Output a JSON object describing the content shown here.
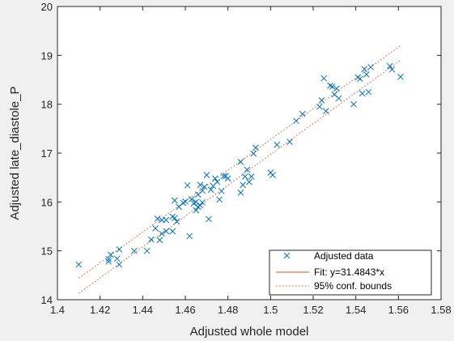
{
  "chart_data": {
    "type": "scatter",
    "title": "",
    "xlabel": "Adjusted whole model",
    "ylabel": "Adjusted late_diastole_P",
    "xlim": [
      1.4,
      1.58
    ],
    "ylim": [
      14,
      20
    ],
    "xticks": [
      "1.4",
      "1.42",
      "1.44",
      "1.46",
      "1.48",
      "1.5",
      "1.52",
      "1.54",
      "1.56",
      "1.58"
    ],
    "yticks": [
      "14",
      "15",
      "16",
      "17",
      "18",
      "19",
      "20"
    ],
    "grid": false,
    "legend_position": "bottom-right",
    "legend": [
      {
        "label": "Adjusted data",
        "marker": "x",
        "color": "#0072bd"
      },
      {
        "label": "Fit: y=31.4843*x",
        "style": "solid",
        "color": "#d95319"
      },
      {
        "label": "95% conf. bounds",
        "style": "dotted",
        "color": "#d95319"
      }
    ],
    "series": [
      {
        "name": "Adjusted data",
        "marker": "x",
        "color": "#0072bd",
        "x": [
          1.41,
          1.424,
          1.424,
          1.425,
          1.428,
          1.429,
          1.429,
          1.436,
          1.442,
          1.444,
          1.446,
          1.447,
          1.448,
          1.449,
          1.449,
          1.451,
          1.451,
          1.454,
          1.454,
          1.455,
          1.455,
          1.456,
          1.457,
          1.459,
          1.46,
          1.461,
          1.462,
          1.463,
          1.464,
          1.465,
          1.465,
          1.466,
          1.466,
          1.467,
          1.467,
          1.468,
          1.468,
          1.469,
          1.47,
          1.471,
          1.472,
          1.473,
          1.474,
          1.475,
          1.476,
          1.477,
          1.478,
          1.479,
          1.48,
          1.486,
          1.486,
          1.487,
          1.488,
          1.489,
          1.49,
          1.491,
          1.492,
          1.493,
          1.5,
          1.501,
          1.503,
          1.509,
          1.512,
          1.515,
          1.523,
          1.524,
          1.525,
          1.526,
          1.528,
          1.529,
          1.53,
          1.531,
          1.532,
          1.539,
          1.541,
          1.542,
          1.543,
          1.544,
          1.545,
          1.546,
          1.547,
          1.556,
          1.557,
          1.561
        ],
        "y": [
          14.72,
          14.78,
          14.83,
          14.92,
          14.84,
          14.72,
          15.03,
          15.0,
          15.0,
          15.23,
          15.46,
          15.66,
          15.22,
          15.63,
          15.35,
          15.63,
          15.4,
          15.4,
          15.7,
          15.67,
          16.03,
          15.6,
          15.9,
          15.98,
          16.01,
          16.34,
          15.3,
          16.06,
          15.97,
          15.83,
          16.0,
          15.9,
          16.15,
          16.35,
          15.93,
          16.23,
          15.99,
          16.31,
          16.55,
          15.65,
          16.25,
          16.33,
          16.48,
          16.41,
          16.05,
          16.22,
          16.53,
          16.53,
          16.48,
          16.82,
          16.19,
          16.35,
          16.52,
          16.66,
          16.41,
          16.52,
          16.99,
          17.11,
          16.6,
          16.55,
          17.17,
          17.23,
          17.66,
          17.8,
          17.95,
          18.08,
          18.53,
          17.86,
          18.38,
          18.36,
          18.2,
          18.32,
          18.12,
          18.0,
          18.55,
          18.52,
          18.22,
          18.72,
          18.61,
          18.25,
          18.76,
          18.78,
          18.71,
          18.56
        ]
      }
    ],
    "fit": {
      "name": "Fit: y=31.4843*x",
      "slope": 31.4843,
      "x_range": [
        1.41,
        1.561
      ],
      "color": "#d95319"
    },
    "conf_bounds": {
      "name": "95% conf. bounds",
      "lower": [
        14.13,
        18.9
      ],
      "upper": [
        14.44,
        19.2
      ],
      "color": "#d95319"
    }
  }
}
